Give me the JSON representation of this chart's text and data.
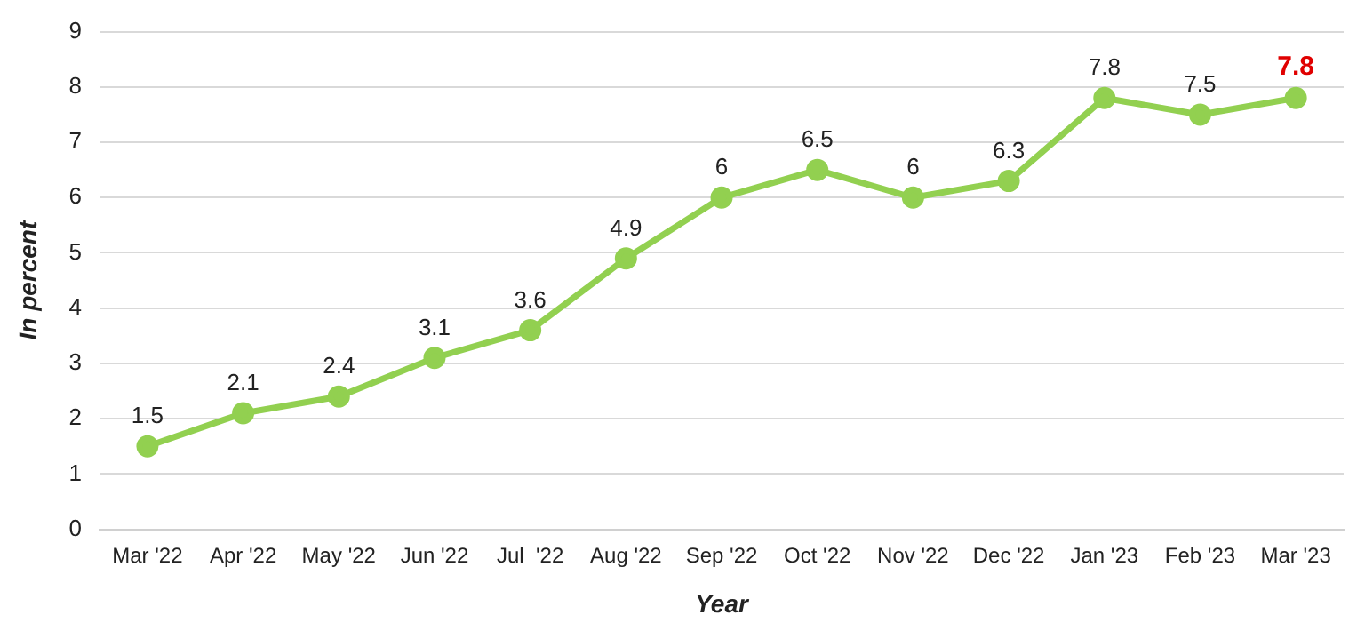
{
  "chart_data": {
    "type": "line",
    "xlabel": "Year",
    "ylabel": "In percent",
    "categories": [
      "Mar '22",
      "Apr '22",
      "May '22",
      "Jun '22",
      "Jul  '22",
      "Aug '22",
      "Sep '22",
      "Oct '22",
      "Nov '22",
      "Dec '22",
      "Jan '23",
      "Feb '23",
      "Mar '23"
    ],
    "series": [
      {
        "color": "#92d050",
        "values": [
          1.5,
          2.1,
          2.4,
          3.1,
          3.6,
          4.9,
          6,
          6.5,
          6,
          6.3,
          7.8,
          7.5,
          7.8
        ]
      }
    ],
    "ylim": [
      0,
      9
    ],
    "yticks": [
      0,
      1,
      2,
      3,
      4,
      5,
      6,
      7,
      8,
      9
    ],
    "grid": "y",
    "marker": "circle",
    "line_style": "solid",
    "data_labels": true,
    "legend": false
  }
}
